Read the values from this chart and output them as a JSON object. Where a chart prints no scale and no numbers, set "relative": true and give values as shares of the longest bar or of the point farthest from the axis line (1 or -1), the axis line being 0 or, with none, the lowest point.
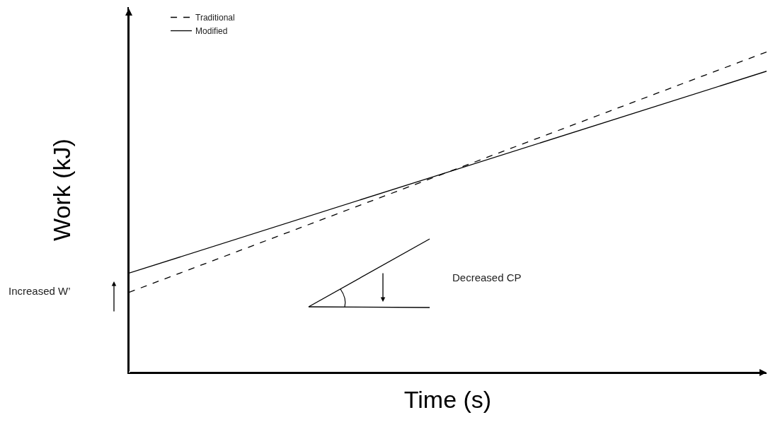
{
  "chart_data": {
    "type": "line",
    "relative": true,
    "xlabel": "Time (s)",
    "ylabel": "Work (kJ)",
    "categories": [
      null,
      null
    ],
    "series": [
      {
        "name": "Traditional",
        "color": "#000000",
        "values": [
          0.25,
          1
        ],
        "line_style": "dashed"
      },
      {
        "name": "Modified",
        "color": "#000000",
        "values": [
          0.31,
          0.94
        ],
        "line_style": "solid"
      }
    ],
    "annotations": [
      "Increased W’",
      "Decreased CP"
    ],
    "legend": "top left",
    "marker": "none"
  }
}
